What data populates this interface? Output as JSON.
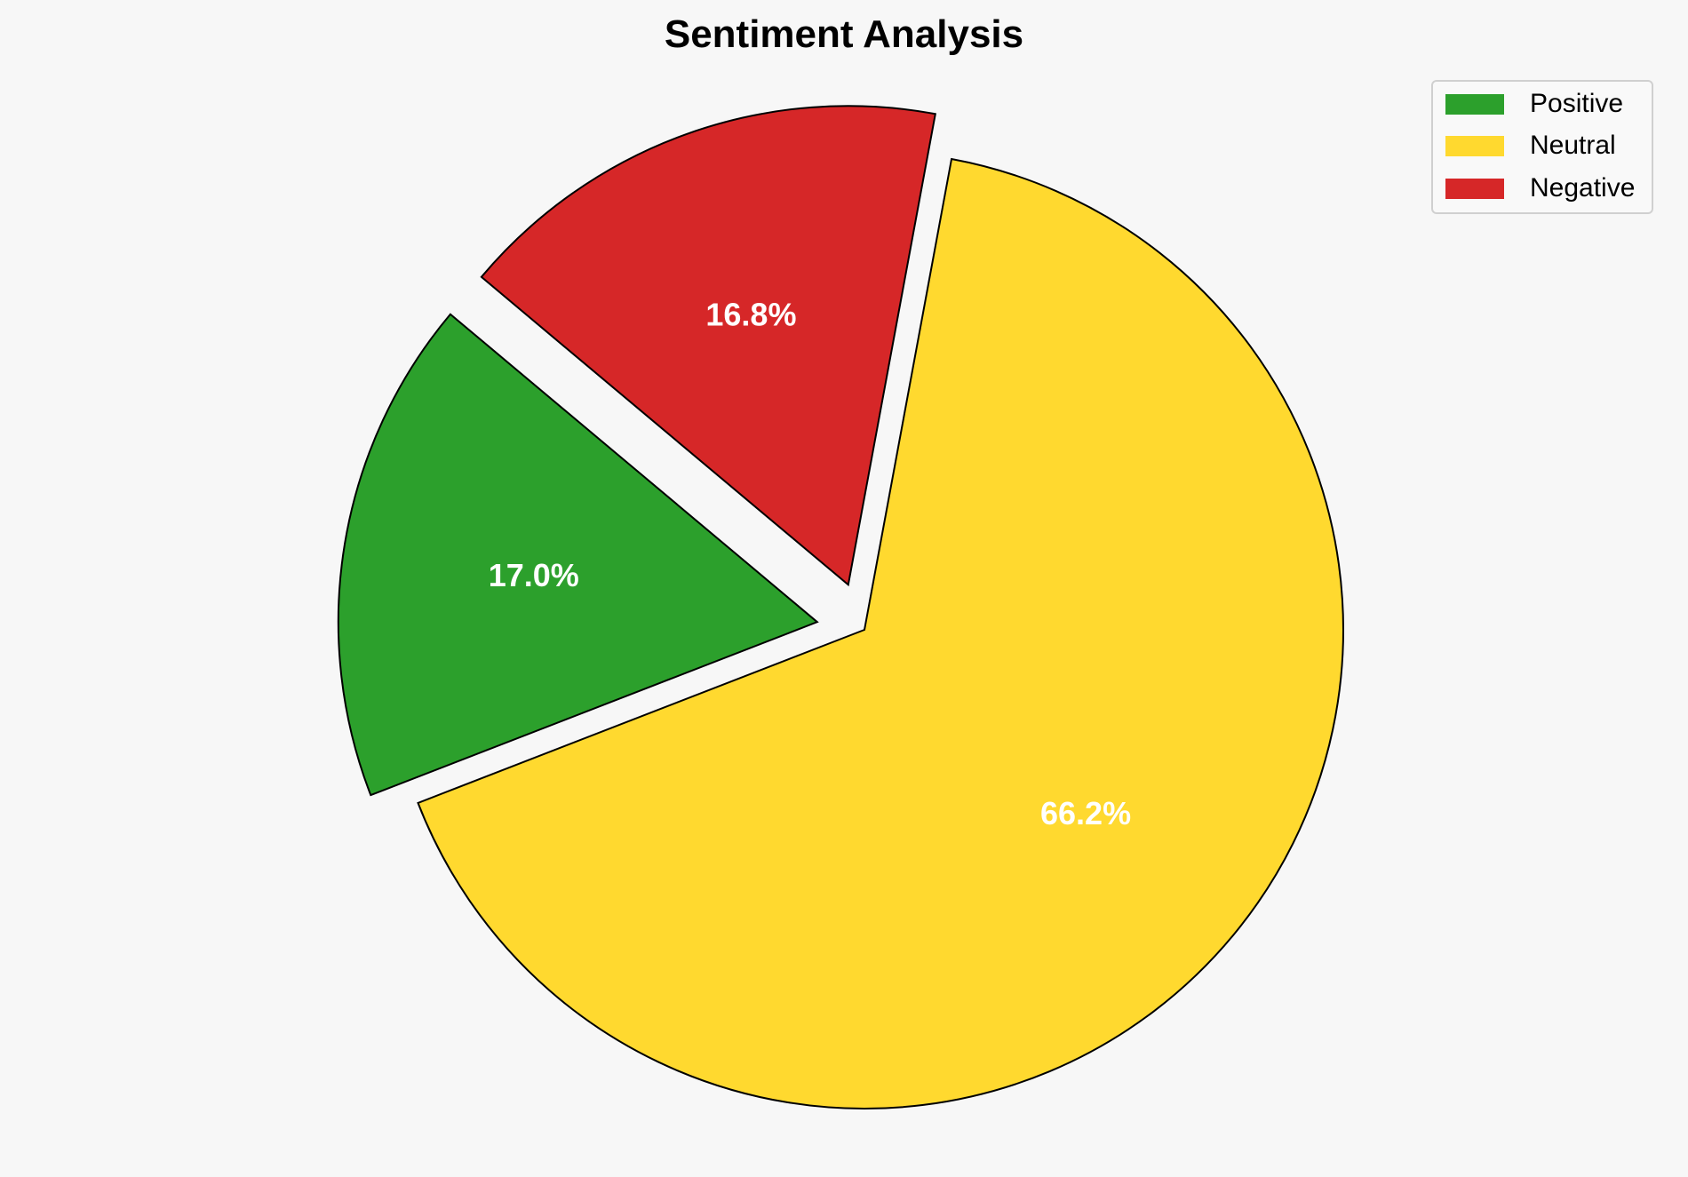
{
  "chart_data": {
    "type": "pie",
    "title": "Sentiment Analysis",
    "categories": [
      "Positive",
      "Neutral",
      "Negative"
    ],
    "values": [
      17.0,
      66.2,
      16.8
    ],
    "labels": [
      "17.0%",
      "66.2%",
      "16.8%"
    ],
    "colors": [
      "#2ca02c",
      "#ffd92f",
      "#d62728"
    ],
    "explode": [
      0.1,
      0,
      0.1
    ],
    "start_angle": 140,
    "legend_position": "top-right"
  }
}
